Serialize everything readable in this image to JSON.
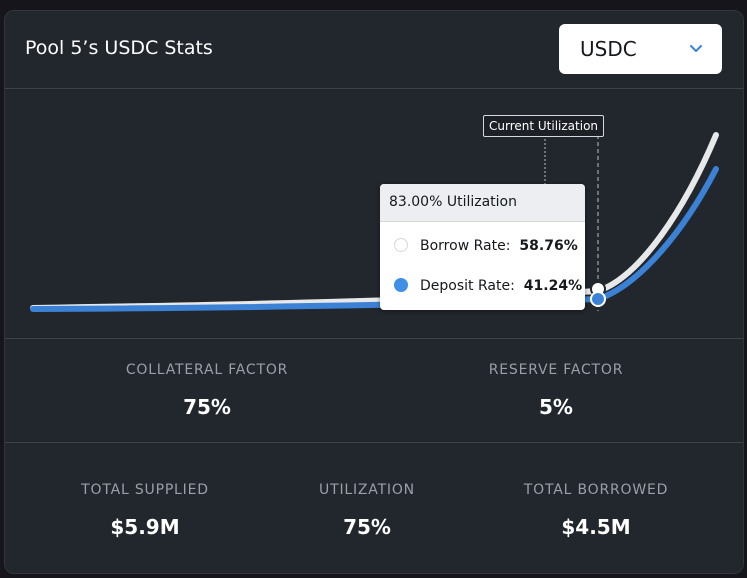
{
  "header": {
    "title": "Pool 5’s USDC Stats",
    "selected_asset": "USDC",
    "selector_icon": "chevron-down-icon"
  },
  "chart": {
    "current_utilization_label": "Current Utilization",
    "hovered_utilization": 83.0,
    "current_utilization": 75,
    "borrow_color": "#e7e8ea",
    "deposit_color": "#3b82d6",
    "tooltip": {
      "title": "83.00% Utilization",
      "borrow_label": "Borrow Rate:",
      "borrow_value": "58.76%",
      "deposit_label": "Deposit Rate:",
      "deposit_value": "41.24%"
    }
  },
  "factors": {
    "collateral_label": "COLLATERAL FACTOR",
    "collateral_value": "75%",
    "reserve_label": "RESERVE FACTOR",
    "reserve_value": "5%"
  },
  "totals": {
    "supplied_label": "TOTAL SUPPLIED",
    "supplied_value": "$5.9M",
    "utilization_label": "UTILIZATION",
    "utilization_value": "75%",
    "borrowed_label": "TOTAL BORROWED",
    "borrowed_value": "$4.5M"
  }
}
